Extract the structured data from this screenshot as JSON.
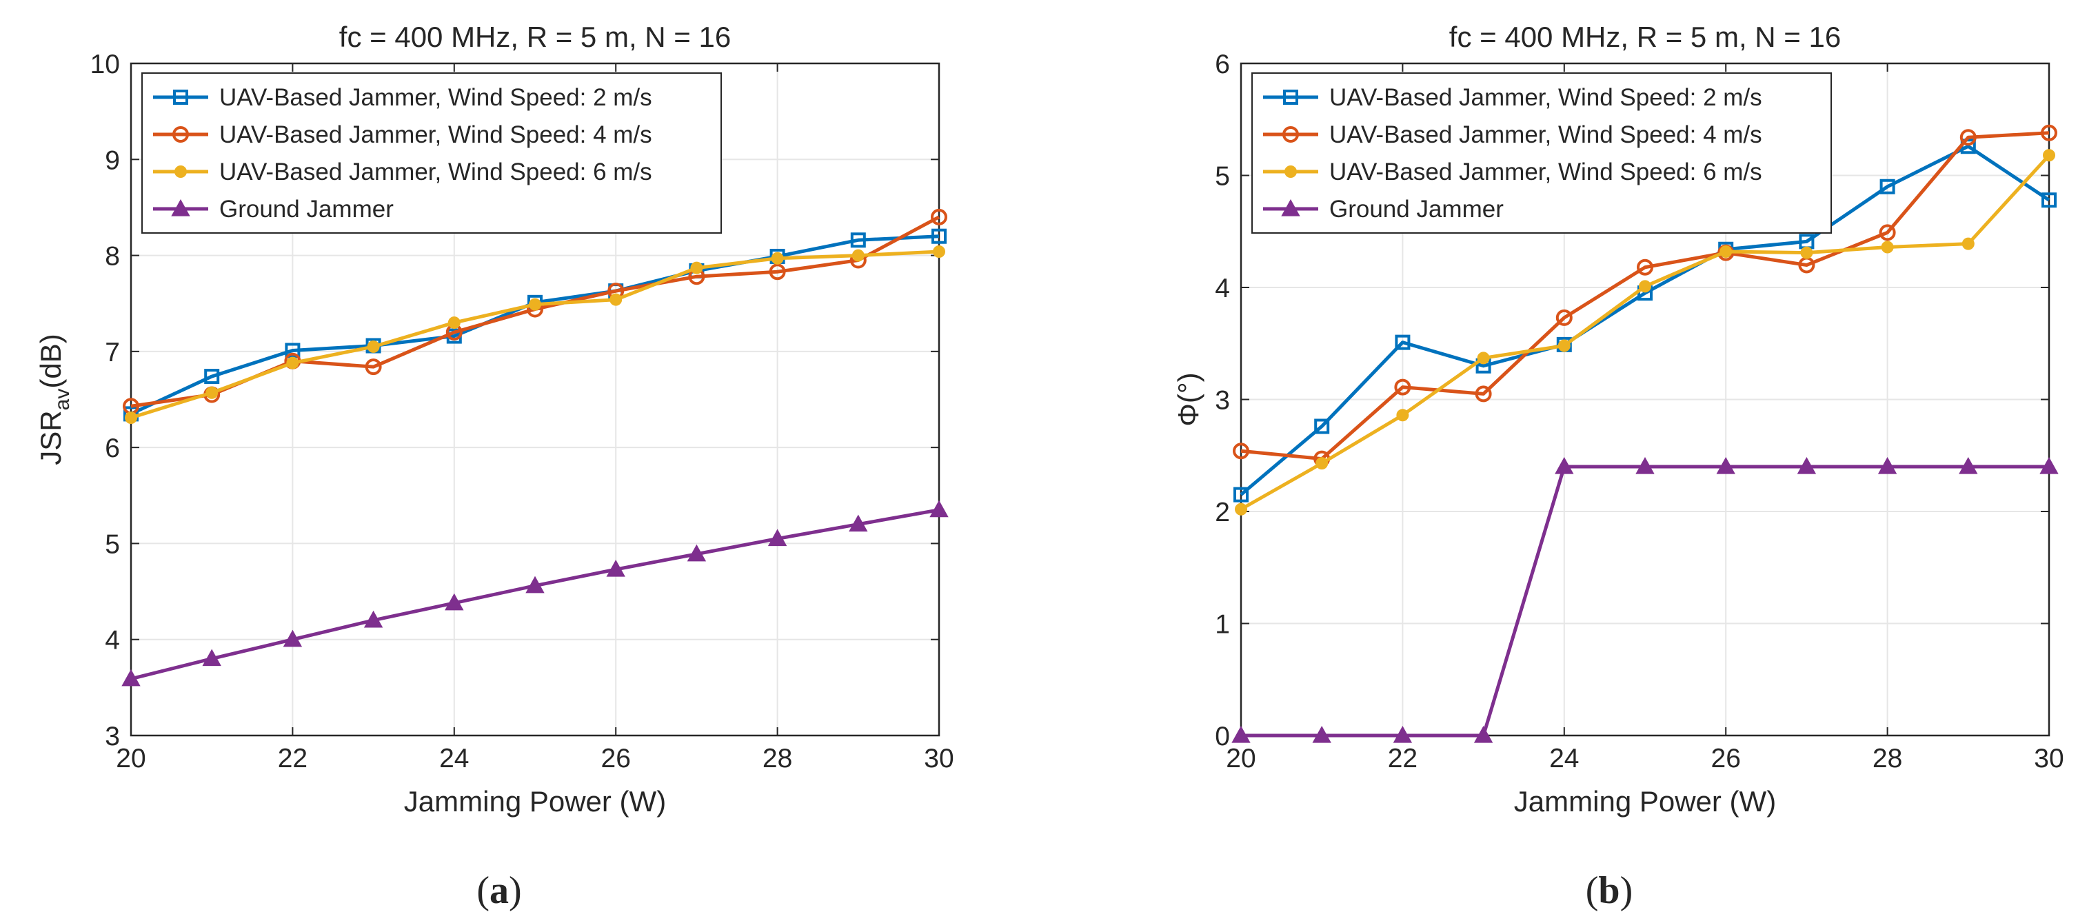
{
  "figure": {
    "panel_labels": [
      "(a)",
      "(b)"
    ]
  },
  "chart_data": [
    {
      "type": "line",
      "title": "fc = 400 MHz, R = 5 m, N = 16",
      "xlabel": "Jamming Power (W)",
      "ylabel_main": "JSR",
      "ylabel_sub": "av",
      "ylabel_unit": "(dB)",
      "xlim": [
        20,
        30
      ],
      "ylim": [
        3,
        10
      ],
      "xticks": [
        20,
        22,
        24,
        26,
        28,
        30
      ],
      "yticks": [
        3,
        4,
        5,
        6,
        7,
        8,
        9,
        10
      ],
      "grid": true,
      "legend_position": "top-left",
      "x": [
        20,
        21,
        22,
        23,
        24,
        25,
        26,
        27,
        28,
        29,
        30
      ],
      "series": [
        {
          "name": "UAV-Based Jammer, Wind Speed: 2 m/s",
          "color": "#0072BD",
          "marker": "square",
          "values": [
            6.35,
            6.74,
            7.01,
            7.06,
            7.16,
            7.51,
            7.63,
            7.84,
            7.99,
            8.16,
            8.2
          ]
        },
        {
          "name": "UAV-Based Jammer, Wind Speed: 4 m/s",
          "color": "#D95319",
          "marker": "circle",
          "values": [
            6.43,
            6.55,
            6.9,
            6.84,
            7.2,
            7.44,
            7.63,
            7.78,
            7.83,
            7.95,
            8.4
          ]
        },
        {
          "name": "UAV-Based Jammer, Wind Speed: 6 m/s",
          "color": "#EDB120",
          "marker": "dot",
          "values": [
            6.31,
            6.57,
            6.88,
            7.05,
            7.3,
            7.49,
            7.54,
            7.87,
            7.97,
            8.0,
            8.04
          ]
        },
        {
          "name": "Ground Jammer",
          "color": "#7E2F8E",
          "marker": "triangle",
          "values": [
            3.59,
            3.8,
            4.0,
            4.2,
            4.38,
            4.56,
            4.73,
            4.89,
            5.05,
            5.2,
            5.35
          ]
        }
      ]
    },
    {
      "type": "line",
      "title": "fc = 400 MHz, R = 5 m, N = 16",
      "xlabel": "Jamming Power (W)",
      "ylabel_main": "Φ",
      "ylabel_sub": "",
      "ylabel_unit": "(°)",
      "xlim": [
        20,
        30
      ],
      "ylim": [
        0,
        6
      ],
      "xticks": [
        20,
        22,
        24,
        26,
        28,
        30
      ],
      "yticks": [
        0,
        1,
        2,
        3,
        4,
        5,
        6
      ],
      "grid": true,
      "legend_position": "top-left",
      "x": [
        20,
        21,
        22,
        23,
        24,
        25,
        26,
        27,
        28,
        29,
        30
      ],
      "series": [
        {
          "name": "UAV-Based Jammer, Wind Speed: 2 m/s",
          "color": "#0072BD",
          "marker": "square",
          "values": [
            2.15,
            2.76,
            3.51,
            3.3,
            3.49,
            3.95,
            4.34,
            4.41,
            4.9,
            5.26,
            4.78
          ]
        },
        {
          "name": "UAV-Based Jammer, Wind Speed: 4 m/s",
          "color": "#D95319",
          "marker": "circle",
          "values": [
            2.54,
            2.47,
            3.11,
            3.05,
            3.73,
            4.18,
            4.31,
            4.2,
            4.49,
            5.34,
            5.38
          ]
        },
        {
          "name": "UAV-Based Jammer, Wind Speed: 6 m/s",
          "color": "#EDB120",
          "marker": "dot",
          "values": [
            2.02,
            2.43,
            2.86,
            3.37,
            3.48,
            4.01,
            4.32,
            4.31,
            4.36,
            4.39,
            5.18
          ]
        },
        {
          "name": "Ground Jammer",
          "color": "#7E2F8E",
          "marker": "triangle",
          "values": [
            0,
            0,
            0,
            0,
            2.4,
            2.4,
            2.4,
            2.4,
            2.4,
            2.4,
            2.4
          ]
        }
      ]
    }
  ]
}
